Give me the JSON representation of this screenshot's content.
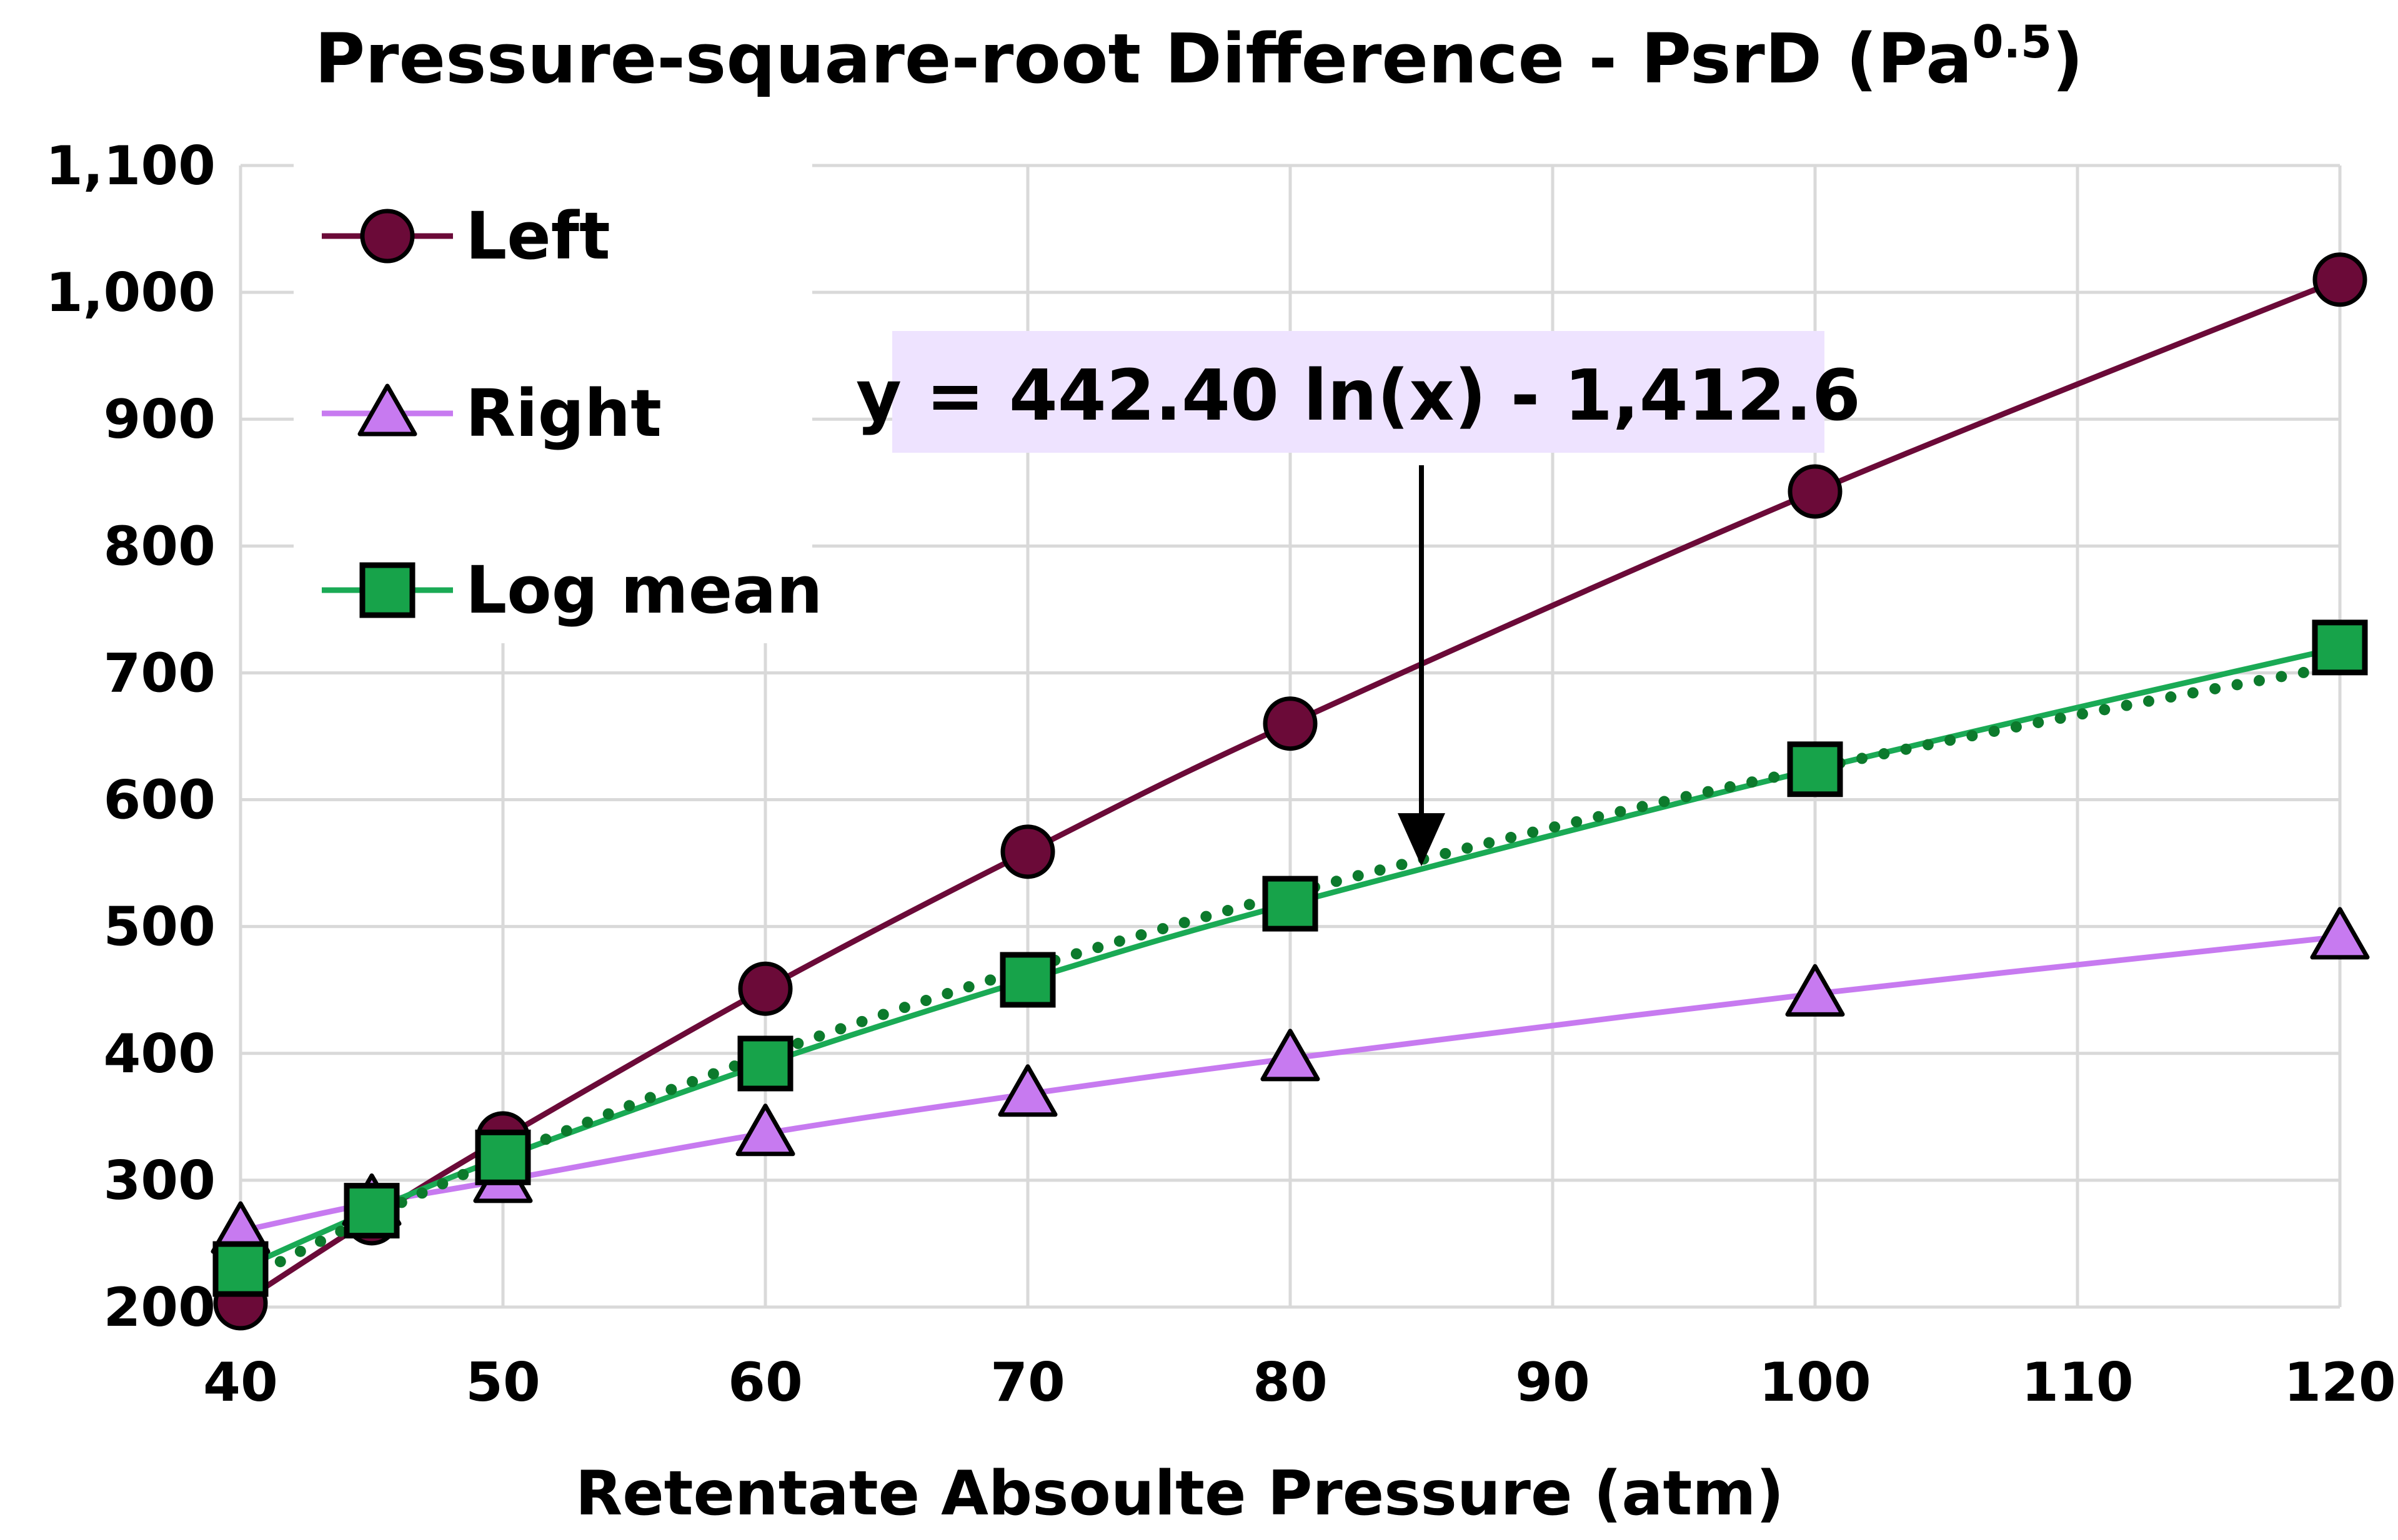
{
  "chart_data": {
    "type": "line",
    "title": "Pressure-square-root Difference - PsrD (Pa",
    "title_superscript": "0.5",
    "title_suffix": ")",
    "xlabel": "Retentate Absoulte Pressure (atm)",
    "ylabel": "",
    "xlim": [
      40,
      120
    ],
    "ylim": [
      200,
      1100
    ],
    "xticks": [
      40,
      50,
      60,
      70,
      80,
      90,
      100,
      110,
      120
    ],
    "yticks": [
      200,
      300,
      400,
      500,
      600,
      700,
      800,
      900,
      1000,
      1100
    ],
    "ytick_labels": [
      "200",
      "300",
      "400",
      "500",
      "600",
      "700",
      "800",
      "900",
      "1,000",
      "1,100"
    ],
    "grid": true,
    "legend_position": "top-left",
    "series": [
      {
        "name": "Left",
        "color": "#6b0a38",
        "marker": "circle",
        "marker_fill": "#6b0a38",
        "x": [
          40,
          45,
          50,
          60,
          70,
          80,
          100,
          120
        ],
        "values": [
          203,
          270,
          333,
          451,
          559,
          660,
          843,
          1010
        ]
      },
      {
        "name": "Right",
        "color": "#c77af0",
        "marker": "triangle",
        "marker_fill": "#c77af0",
        "x": [
          40,
          45,
          50,
          60,
          70,
          80,
          100,
          120
        ],
        "values": [
          260,
          282,
          300,
          337,
          368,
          396,
          447,
          492
        ]
      },
      {
        "name": "Log mean",
        "color": "#1aaa55",
        "marker": "square",
        "marker_fill": "#17a34a",
        "x": [
          40,
          45,
          50,
          60,
          70,
          80,
          100,
          120
        ],
        "values": [
          230,
          276,
          318,
          392,
          458,
          518,
          624,
          720
        ]
      }
    ],
    "trendline": {
      "series": "Log mean",
      "type": "logarithmic",
      "a": 442.4,
      "b": -1412.6,
      "color": "#0c7a2c",
      "style": "dotted"
    },
    "annotation": {
      "text": "y = 442.40 ln(x) - 1,412.6",
      "background": "#eee3ff",
      "arrow_target_x": 85,
      "arrow_target_y": 550
    }
  }
}
